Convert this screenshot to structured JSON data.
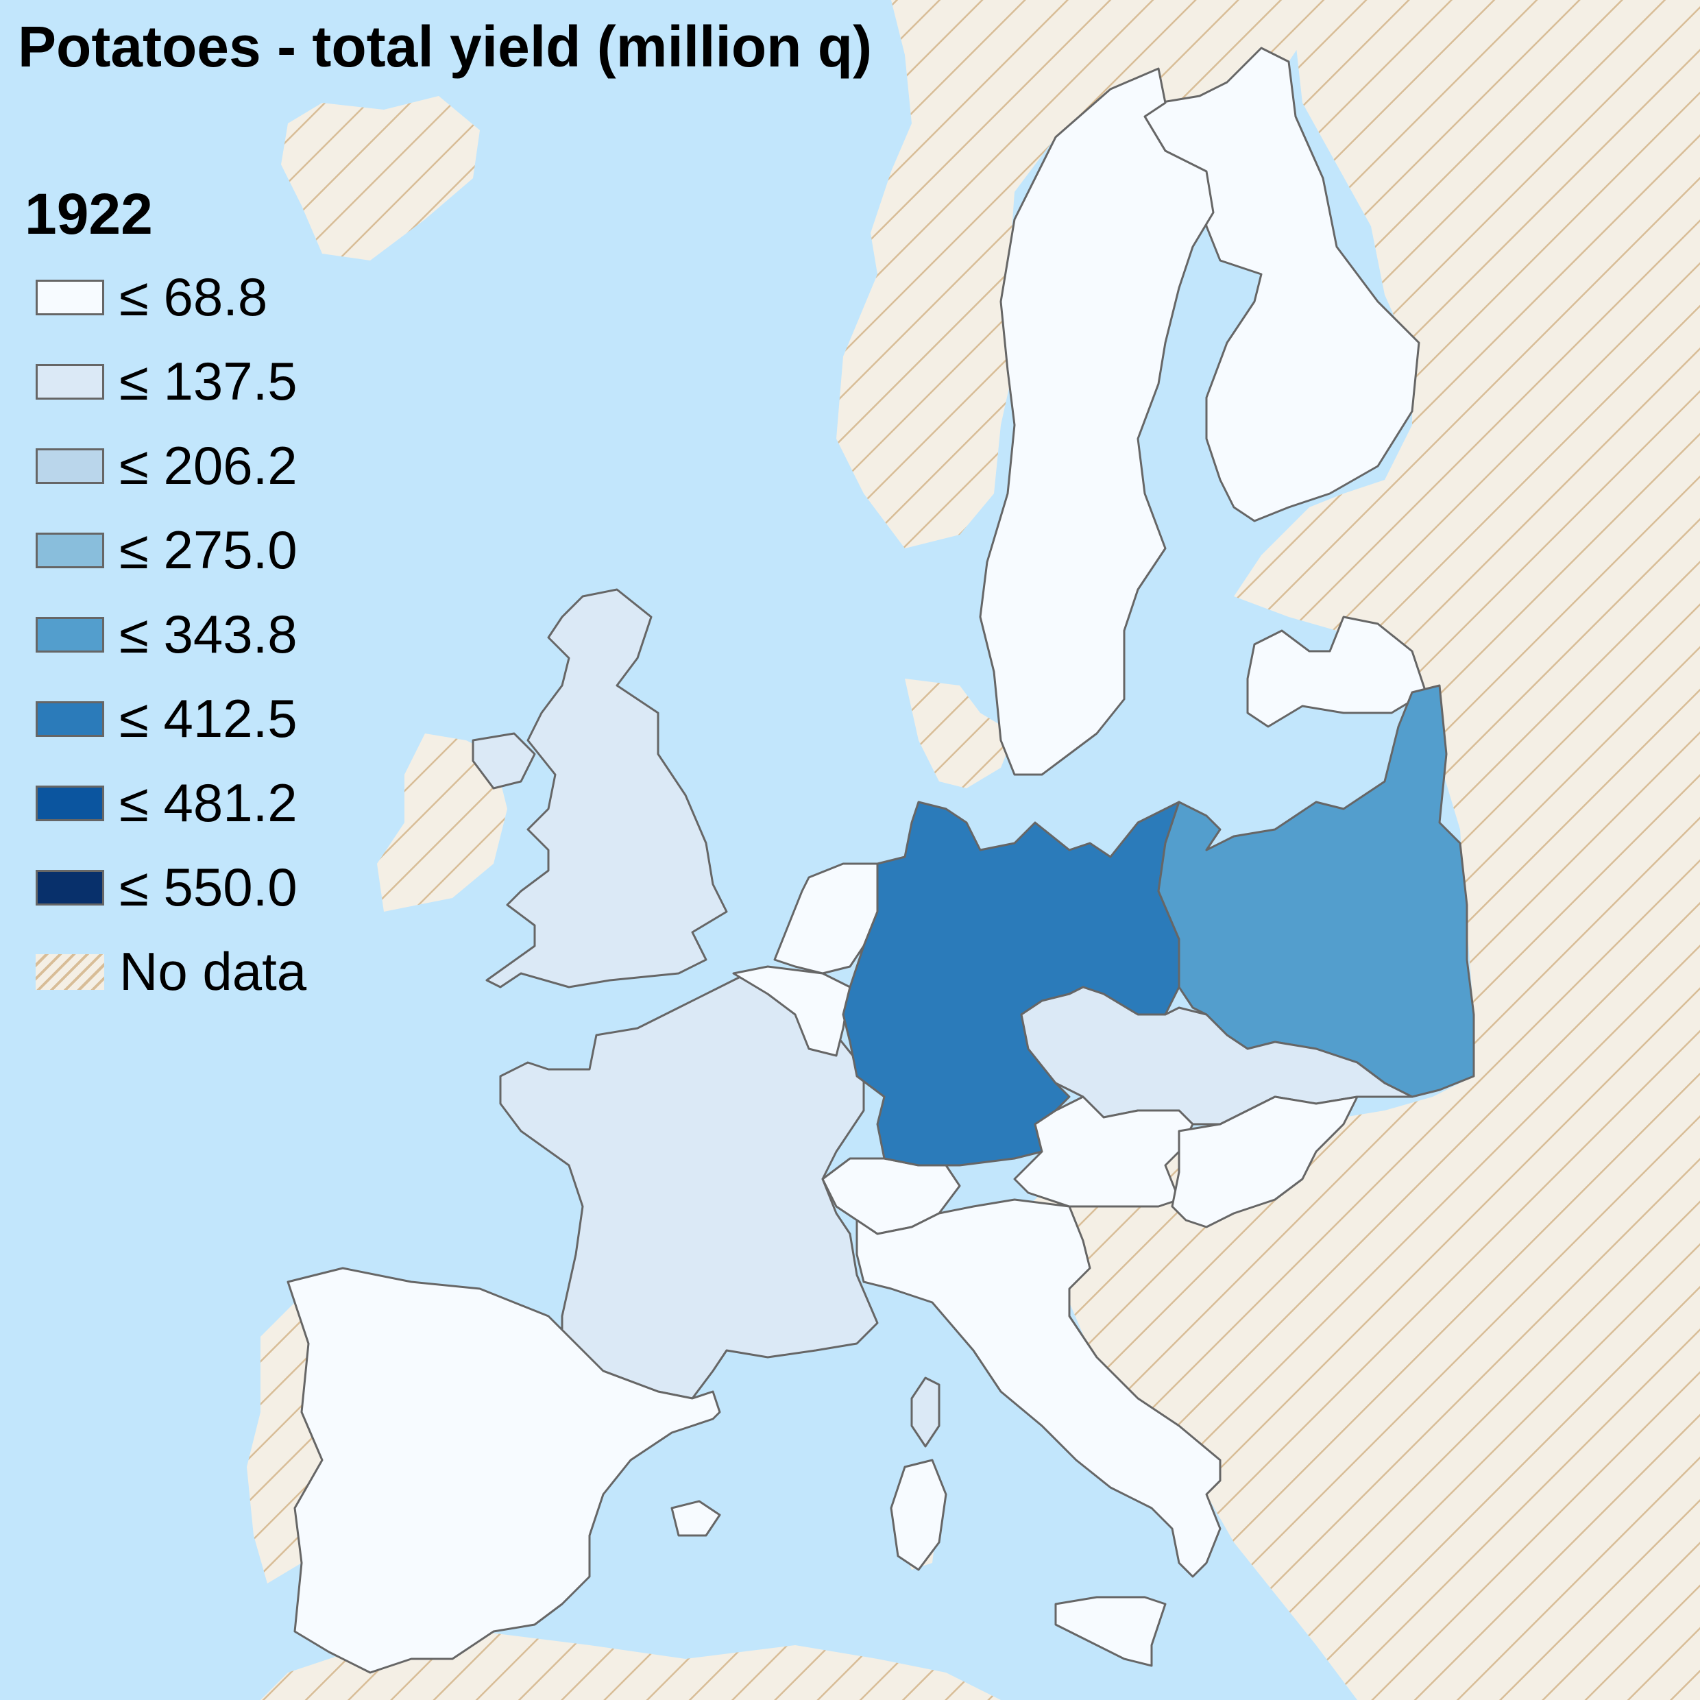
{
  "map": {
    "title": "Potatoes - total yield (million q)",
    "year": "1922",
    "colors": {
      "sea": "#c2e6fc",
      "nodata_base": "#f4efe5",
      "nodata_hatch": "#d8bd97",
      "border": "#666666"
    },
    "legend": [
      {
        "label": "≤ 68.8",
        "color": "#f7fbff"
      },
      {
        "label": "≤ 137.5",
        "color": "#dbe9f6"
      },
      {
        "label": "≤ 206.2",
        "color": "#bad6eb"
      },
      {
        "label": "≤ 275.0",
        "color": "#89bedc"
      },
      {
        "label": "≤ 343.8",
        "color": "#539ecd"
      },
      {
        "label": "≤ 412.5",
        "color": "#2b7bba"
      },
      {
        "label": "≤ 481.2",
        "color": "#0b559f"
      },
      {
        "label": "≤ 550.0",
        "color": "#08306b"
      },
      {
        "label": "No data",
        "color": "hatch"
      }
    ],
    "regions": [
      {
        "name": "Germany",
        "class": "≤ 412.5"
      },
      {
        "name": "Poland",
        "class": "≤ 343.8"
      },
      {
        "name": "United Kingdom",
        "class": "≤ 137.5"
      },
      {
        "name": "France",
        "class": "≤ 137.5"
      },
      {
        "name": "Czechoslovakia",
        "class": "≤ 137.5"
      },
      {
        "name": "Corsica",
        "class": "≤ 137.5"
      },
      {
        "name": "Spain",
        "class": "≤ 68.8"
      },
      {
        "name": "Italy",
        "class": "≤ 68.8"
      },
      {
        "name": "Sweden",
        "class": "≤ 68.8"
      },
      {
        "name": "Finland",
        "class": "≤ 68.8"
      },
      {
        "name": "Latvia",
        "class": "≤ 68.8"
      },
      {
        "name": "Austria",
        "class": "≤ 68.8"
      },
      {
        "name": "Hungary",
        "class": "≤ 68.8"
      },
      {
        "name": "Switzerland",
        "class": "≤ 68.8"
      },
      {
        "name": "Netherlands",
        "class": "≤ 68.8"
      },
      {
        "name": "Belgium",
        "class": "≤ 68.8"
      }
    ]
  }
}
